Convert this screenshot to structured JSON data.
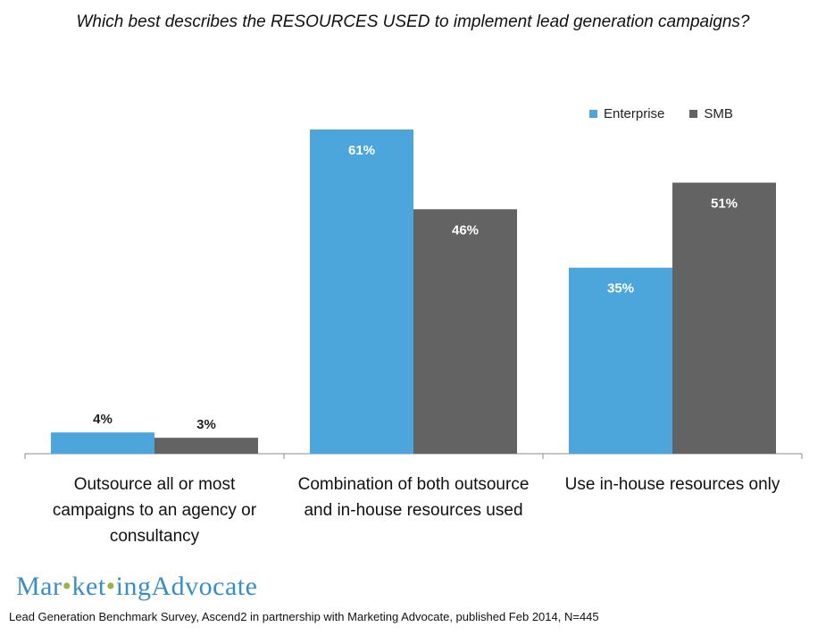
{
  "title": "Which best describes the RESOURCES USED to implement lead generation campaigns?",
  "legend": [
    {
      "name": "Enterprise",
      "color": "#4da6db"
    },
    {
      "name": "SMB",
      "color": "#636363"
    }
  ],
  "logo": {
    "part1": "Mar",
    "part2": "ket",
    "part3": "ing",
    "part4": "Advocate"
  },
  "source": "Lead Generation Benchmark Survey, Ascend2 in partnership with Marketing Advocate, published Feb 2014, N=445",
  "chart_data": {
    "type": "bar",
    "title": "Which best describes the RESOURCES USED to implement lead generation campaigns?",
    "categories": [
      "Outsource all or most campaigns to an agency or consultancy",
      "Combination of both outsource and in-house resources used",
      "Use in-house resources only"
    ],
    "series": [
      {
        "name": "Enterprise",
        "values": [
          4,
          61,
          35
        ],
        "labels": [
          "4%",
          "61%",
          "35%"
        ],
        "color": "#4da6db"
      },
      {
        "name": "SMB",
        "values": [
          3,
          46,
          51
        ],
        "labels": [
          "3%",
          "46%",
          "51%"
        ],
        "color": "#636363"
      }
    ],
    "ylim": [
      0,
      66
    ],
    "legend_position": "top-right",
    "grid": false
  }
}
